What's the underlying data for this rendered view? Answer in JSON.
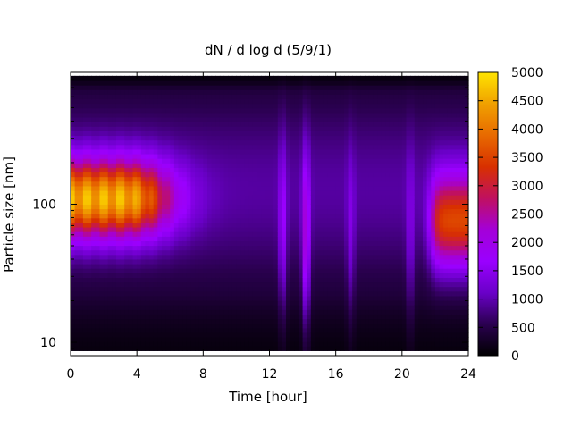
{
  "chart_data": {
    "type": "heatmap",
    "title": "dN / d log d (5/9/1)",
    "xlabel": "Time [hour]",
    "ylabel": "Particle size [nm]",
    "xlim": [
      0,
      24
    ],
    "x_ticks": [
      0,
      4,
      8,
      12,
      16,
      20,
      24
    ],
    "y_scale": "log",
    "ylim": [
      8,
      900
    ],
    "y_ticks": [
      10,
      100
    ],
    "colorbar": {
      "min": 0,
      "max": 5000,
      "ticks": [
        0,
        500,
        1000,
        1500,
        2000,
        2500,
        3000,
        3500,
        4000,
        4500,
        5000
      ],
      "colormap": "black-blue-purple-red-orange-yellow",
      "colors": [
        "#000000",
        "#2a004f",
        "#6a00c8",
        "#9a00ff",
        "#a400d8",
        "#c01060",
        "#d83000",
        "#e86a00",
        "#f0a000",
        "#ffe400"
      ]
    },
    "features": [
      {
        "name": "morning accumulation mode",
        "time_range": [
          0,
          7
        ],
        "size_peak_nm": 110,
        "max_value": 4300
      },
      {
        "name": "burst 12.8h",
        "time": 12.8,
        "size_range_nm": [
          10,
          400
        ],
        "max_value": 1700
      },
      {
        "name": "burst 14.2h",
        "time": 14.2,
        "size_range_nm": [
          10,
          300
        ],
        "max_value": 2300
      },
      {
        "name": "burst 16.9h",
        "time": 16.9,
        "size_range_nm": [
          10,
          300
        ],
        "max_value": 1400
      },
      {
        "name": "burst 20.5h",
        "time": 20.5,
        "size_range_nm": [
          10,
          300
        ],
        "max_value": 1400
      },
      {
        "name": "evening accumulation mode",
        "time_range": [
          21.5,
          24
        ],
        "size_peak_nm": 75,
        "max_value": 3600
      }
    ]
  }
}
